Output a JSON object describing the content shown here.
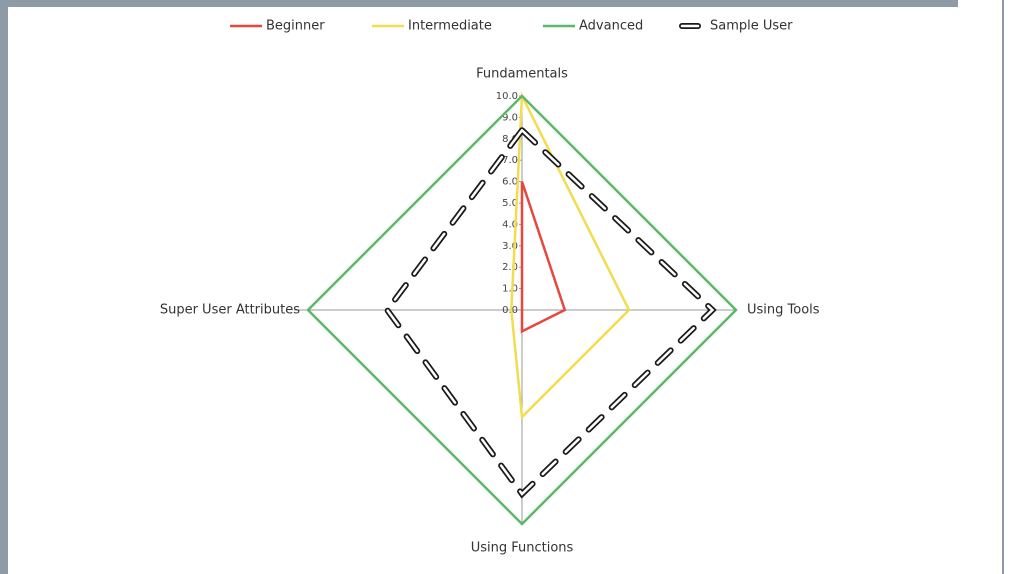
{
  "chart_data": {
    "type": "radar",
    "categories": [
      "Fundamentals",
      "Using Tools",
      "Using Functions",
      "Super User Attributes"
    ],
    "series": [
      {
        "name": "Beginner",
        "color": "#e8473d",
        "values": [
          6,
          2,
          1,
          0
        ]
      },
      {
        "name": "Intermediate",
        "color": "#f2dc50",
        "values": [
          10,
          5,
          5,
          0.5
        ]
      },
      {
        "name": "Advanced",
        "color": "#5bb86a",
        "values": [
          10,
          10,
          10,
          10
        ]
      },
      {
        "name": "Sample User",
        "color": "#1a1a1a",
        "dashed": true,
        "values": [
          8.4,
          8.9,
          8.6,
          6.3
        ]
      }
    ],
    "rlim": [
      0,
      10
    ],
    "rticks": [
      {
        "value": 0,
        "label": "0.0"
      },
      {
        "value": 1,
        "label": "1.0"
      },
      {
        "value": 2,
        "label": "2.0"
      },
      {
        "value": 3,
        "label": "3.0"
      },
      {
        "value": 4,
        "label": "4.0"
      },
      {
        "value": 5,
        "label": "5.0"
      },
      {
        "value": 6,
        "label": "6.0"
      },
      {
        "value": 7,
        "label": "7.0"
      },
      {
        "value": 8,
        "label": "8.0"
      },
      {
        "value": 9,
        "label": "9.0"
      },
      {
        "value": 10,
        "label": "10.0"
      }
    ],
    "legend": "top"
  }
}
